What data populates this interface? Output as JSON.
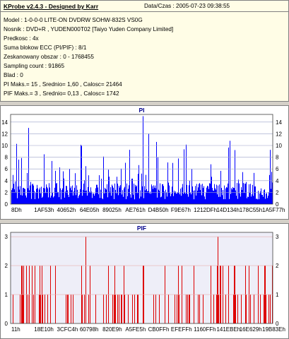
{
  "header": {
    "title": "KProbe v2.4.3 - Designed by Karr",
    "date": "Data/Czas : 2005-07-23 09:38:55"
  },
  "info_lines": [
    "Model : 1-0-0-0 LITE-ON DVDRW SOHW-832S  VS0G",
    "Nosnik : DVD+R , YUDEN000T02 [Taiyo Yuden Company Limited]",
    "Predkosc : 4x",
    "Suma blokow ECC (PI/PIF) : 8/1",
    "Zeskanowany obszar : 0 - 1768455",
    "Sampling count : 91865",
    "Blad : 0",
    "PI Maks.= 15 , Srednio= 1,60 , Calosc= 21464",
    "PIF Maks.= 3 , Srednio= 0,13 , Calosc= 1742"
  ],
  "colors": {
    "pi_bar": "#0000ff",
    "pif_bar": "#dd0000",
    "grid_pi": "#9aa0c8",
    "grid_pif": "#e8b0b0",
    "plot_bg_pif": "#eeeef8"
  },
  "chart_data": [
    {
      "type": "bar",
      "title": "PI",
      "yticks": [
        0,
        2,
        4,
        6,
        8,
        10,
        12,
        14
      ],
      "ylim": [
        0,
        15
      ],
      "xticks": [
        "8Dh",
        "1AF53h",
        "40652h",
        "64E05h",
        "89025h",
        "AE761h",
        "D4B50h",
        "F9E67h",
        "1212DFh",
        "14D134h",
        "178C55h",
        "1A5F77h"
      ],
      "max": 15,
      "average": 1.6,
      "grid": true
    },
    {
      "type": "bar",
      "title": "PIF",
      "yticks": [
        0,
        1,
        2,
        3
      ],
      "ylim": [
        0,
        3
      ],
      "xticks": [
        "11h",
        "18E10h",
        "3CFC4h",
        "60798h",
        "820E9h",
        "A5FE5h",
        "CB0FFh",
        "EFEFFh",
        "1160FFh",
        "141EBEh",
        "16E629h",
        "19B83Eh"
      ],
      "max": 3,
      "average": 0.13,
      "grid": true
    }
  ]
}
